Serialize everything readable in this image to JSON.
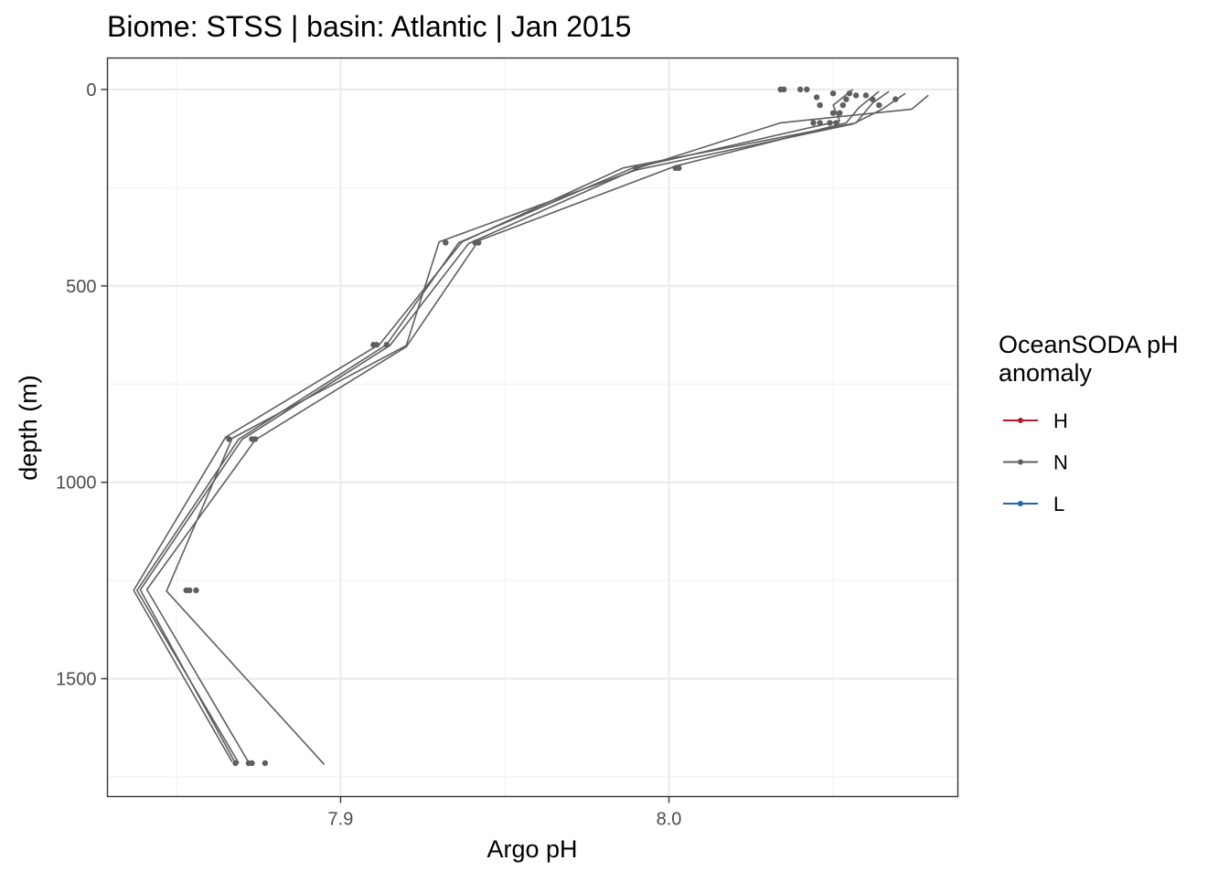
{
  "chart_data": {
    "type": "line",
    "title": "Biome: STSS | basin: Atlantic  | Jan 2015",
    "xlabel": "Argo pH",
    "ylabel": "depth (m)",
    "xlim": [
      7.829,
      8.088
    ],
    "ylim": [
      1800,
      -80
    ],
    "y_reversed": true,
    "grid": true,
    "x_ticks": [
      {
        "value": 7.9,
        "label": "7.9"
      },
      {
        "value": 8.0,
        "label": "8.0"
      }
    ],
    "y_ticks": [
      {
        "value": 0,
        "label": "0"
      },
      {
        "value": 500,
        "label": "500"
      },
      {
        "value": 1000,
        "label": "1000"
      },
      {
        "value": 1500,
        "label": "1500"
      }
    ],
    "legend": {
      "title_lines": [
        "OceanSODA pH",
        "anomaly"
      ],
      "position": "right",
      "items": [
        {
          "label": "H",
          "color": "#b2182b"
        },
        {
          "label": "N",
          "color": "#5f5f5f"
        },
        {
          "label": "L",
          "color": "#2166ac"
        }
      ]
    },
    "series": [
      {
        "group": "N",
        "color": "#5f5f5f",
        "points": [
          [
            8.056,
            0
          ],
          [
            8.05,
            40
          ],
          [
            8.052,
            80
          ],
          [
            7.989,
            200
          ],
          [
            7.936,
            390
          ],
          [
            7.914,
            650
          ],
          [
            7.869,
            890
          ],
          [
            7.838,
            1275
          ],
          [
            7.869,
            1715
          ]
        ]
      },
      {
        "group": "N",
        "color": "#5f5f5f",
        "points": [
          [
            8.064,
            5
          ],
          [
            8.058,
            45
          ],
          [
            8.054,
            85
          ],
          [
            8.002,
            195
          ],
          [
            7.942,
            385
          ],
          [
            7.92,
            655
          ],
          [
            7.874,
            892
          ],
          [
            7.841,
            1273
          ],
          [
            7.872,
            1713
          ]
        ]
      },
      {
        "group": "N",
        "color": "#5f5f5f",
        "points": [
          [
            8.072,
            10
          ],
          [
            8.065,
            50
          ],
          [
            8.056,
            88
          ],
          [
            7.99,
            205
          ],
          [
            7.93,
            388
          ],
          [
            7.92,
            652
          ],
          [
            7.867,
            888
          ],
          [
            7.847,
            1277
          ],
          [
            7.895,
            1718
          ]
        ]
      },
      {
        "group": "N",
        "color": "#5f5f5f",
        "points": [
          [
            8.067,
            5
          ],
          [
            8.062,
            35
          ],
          [
            8.057,
            85
          ],
          [
            7.986,
            200
          ],
          [
            7.937,
            388
          ],
          [
            7.912,
            648
          ],
          [
            7.865,
            885
          ],
          [
            7.837,
            1275
          ],
          [
            7.867,
            1712
          ]
        ]
      },
      {
        "group": "N",
        "color": "#5f5f5f",
        "points": [
          [
            8.079,
            15
          ],
          [
            8.074,
            50
          ],
          [
            8.034,
            85
          ],
          [
            7.991,
            199
          ],
          [
            7.939,
            392
          ],
          [
            7.915,
            652
          ],
          [
            7.87,
            891
          ],
          [
            7.839,
            1274
          ],
          [
            7.868,
            1715
          ]
        ]
      }
    ],
    "points": [
      {
        "group": "N",
        "x": 8.034,
        "y": 0
      },
      {
        "group": "N",
        "x": 8.035,
        "y": 0
      },
      {
        "group": "N",
        "x": 8.04,
        "y": 0
      },
      {
        "group": "N",
        "x": 8.042,
        "y": 0
      },
      {
        "group": "N",
        "x": 8.05,
        "y": 10
      },
      {
        "group": "N",
        "x": 8.045,
        "y": 20
      },
      {
        "group": "N",
        "x": 8.055,
        "y": 10
      },
      {
        "group": "N",
        "x": 8.057,
        "y": 15
      },
      {
        "group": "N",
        "x": 8.054,
        "y": 25
      },
      {
        "group": "N",
        "x": 8.053,
        "y": 40
      },
      {
        "group": "N",
        "x": 8.046,
        "y": 40
      },
      {
        "group": "N",
        "x": 8.062,
        "y": 25
      },
      {
        "group": "N",
        "x": 8.064,
        "y": 40
      },
      {
        "group": "N",
        "x": 8.069,
        "y": 25
      },
      {
        "group": "N",
        "x": 8.06,
        "y": 15
      },
      {
        "group": "N",
        "x": 8.052,
        "y": 60
      },
      {
        "group": "N",
        "x": 8.05,
        "y": 60
      },
      {
        "group": "N",
        "x": 8.049,
        "y": 85
      },
      {
        "group": "N",
        "x": 8.046,
        "y": 85
      },
      {
        "group": "N",
        "x": 8.044,
        "y": 85
      },
      {
        "group": "N",
        "x": 8.051,
        "y": 85
      },
      {
        "group": "N",
        "x": 7.99,
        "y": 200
      },
      {
        "group": "N",
        "x": 8.002,
        "y": 200
      },
      {
        "group": "N",
        "x": 8.003,
        "y": 200
      },
      {
        "group": "N",
        "x": 7.932,
        "y": 390
      },
      {
        "group": "N",
        "x": 7.941,
        "y": 390
      },
      {
        "group": "N",
        "x": 7.942,
        "y": 390
      },
      {
        "group": "N",
        "x": 7.91,
        "y": 650
      },
      {
        "group": "N",
        "x": 7.911,
        "y": 650
      },
      {
        "group": "N",
        "x": 7.914,
        "y": 650
      },
      {
        "group": "N",
        "x": 7.866,
        "y": 890
      },
      {
        "group": "N",
        "x": 7.873,
        "y": 890
      },
      {
        "group": "N",
        "x": 7.874,
        "y": 890
      },
      {
        "group": "N",
        "x": 7.853,
        "y": 1275
      },
      {
        "group": "N",
        "x": 7.854,
        "y": 1275
      },
      {
        "group": "N",
        "x": 7.856,
        "y": 1275
      },
      {
        "group": "N",
        "x": 7.868,
        "y": 1715
      },
      {
        "group": "N",
        "x": 7.872,
        "y": 1715
      },
      {
        "group": "N",
        "x": 7.873,
        "y": 1715
      },
      {
        "group": "N",
        "x": 7.877,
        "y": 1715
      }
    ]
  }
}
